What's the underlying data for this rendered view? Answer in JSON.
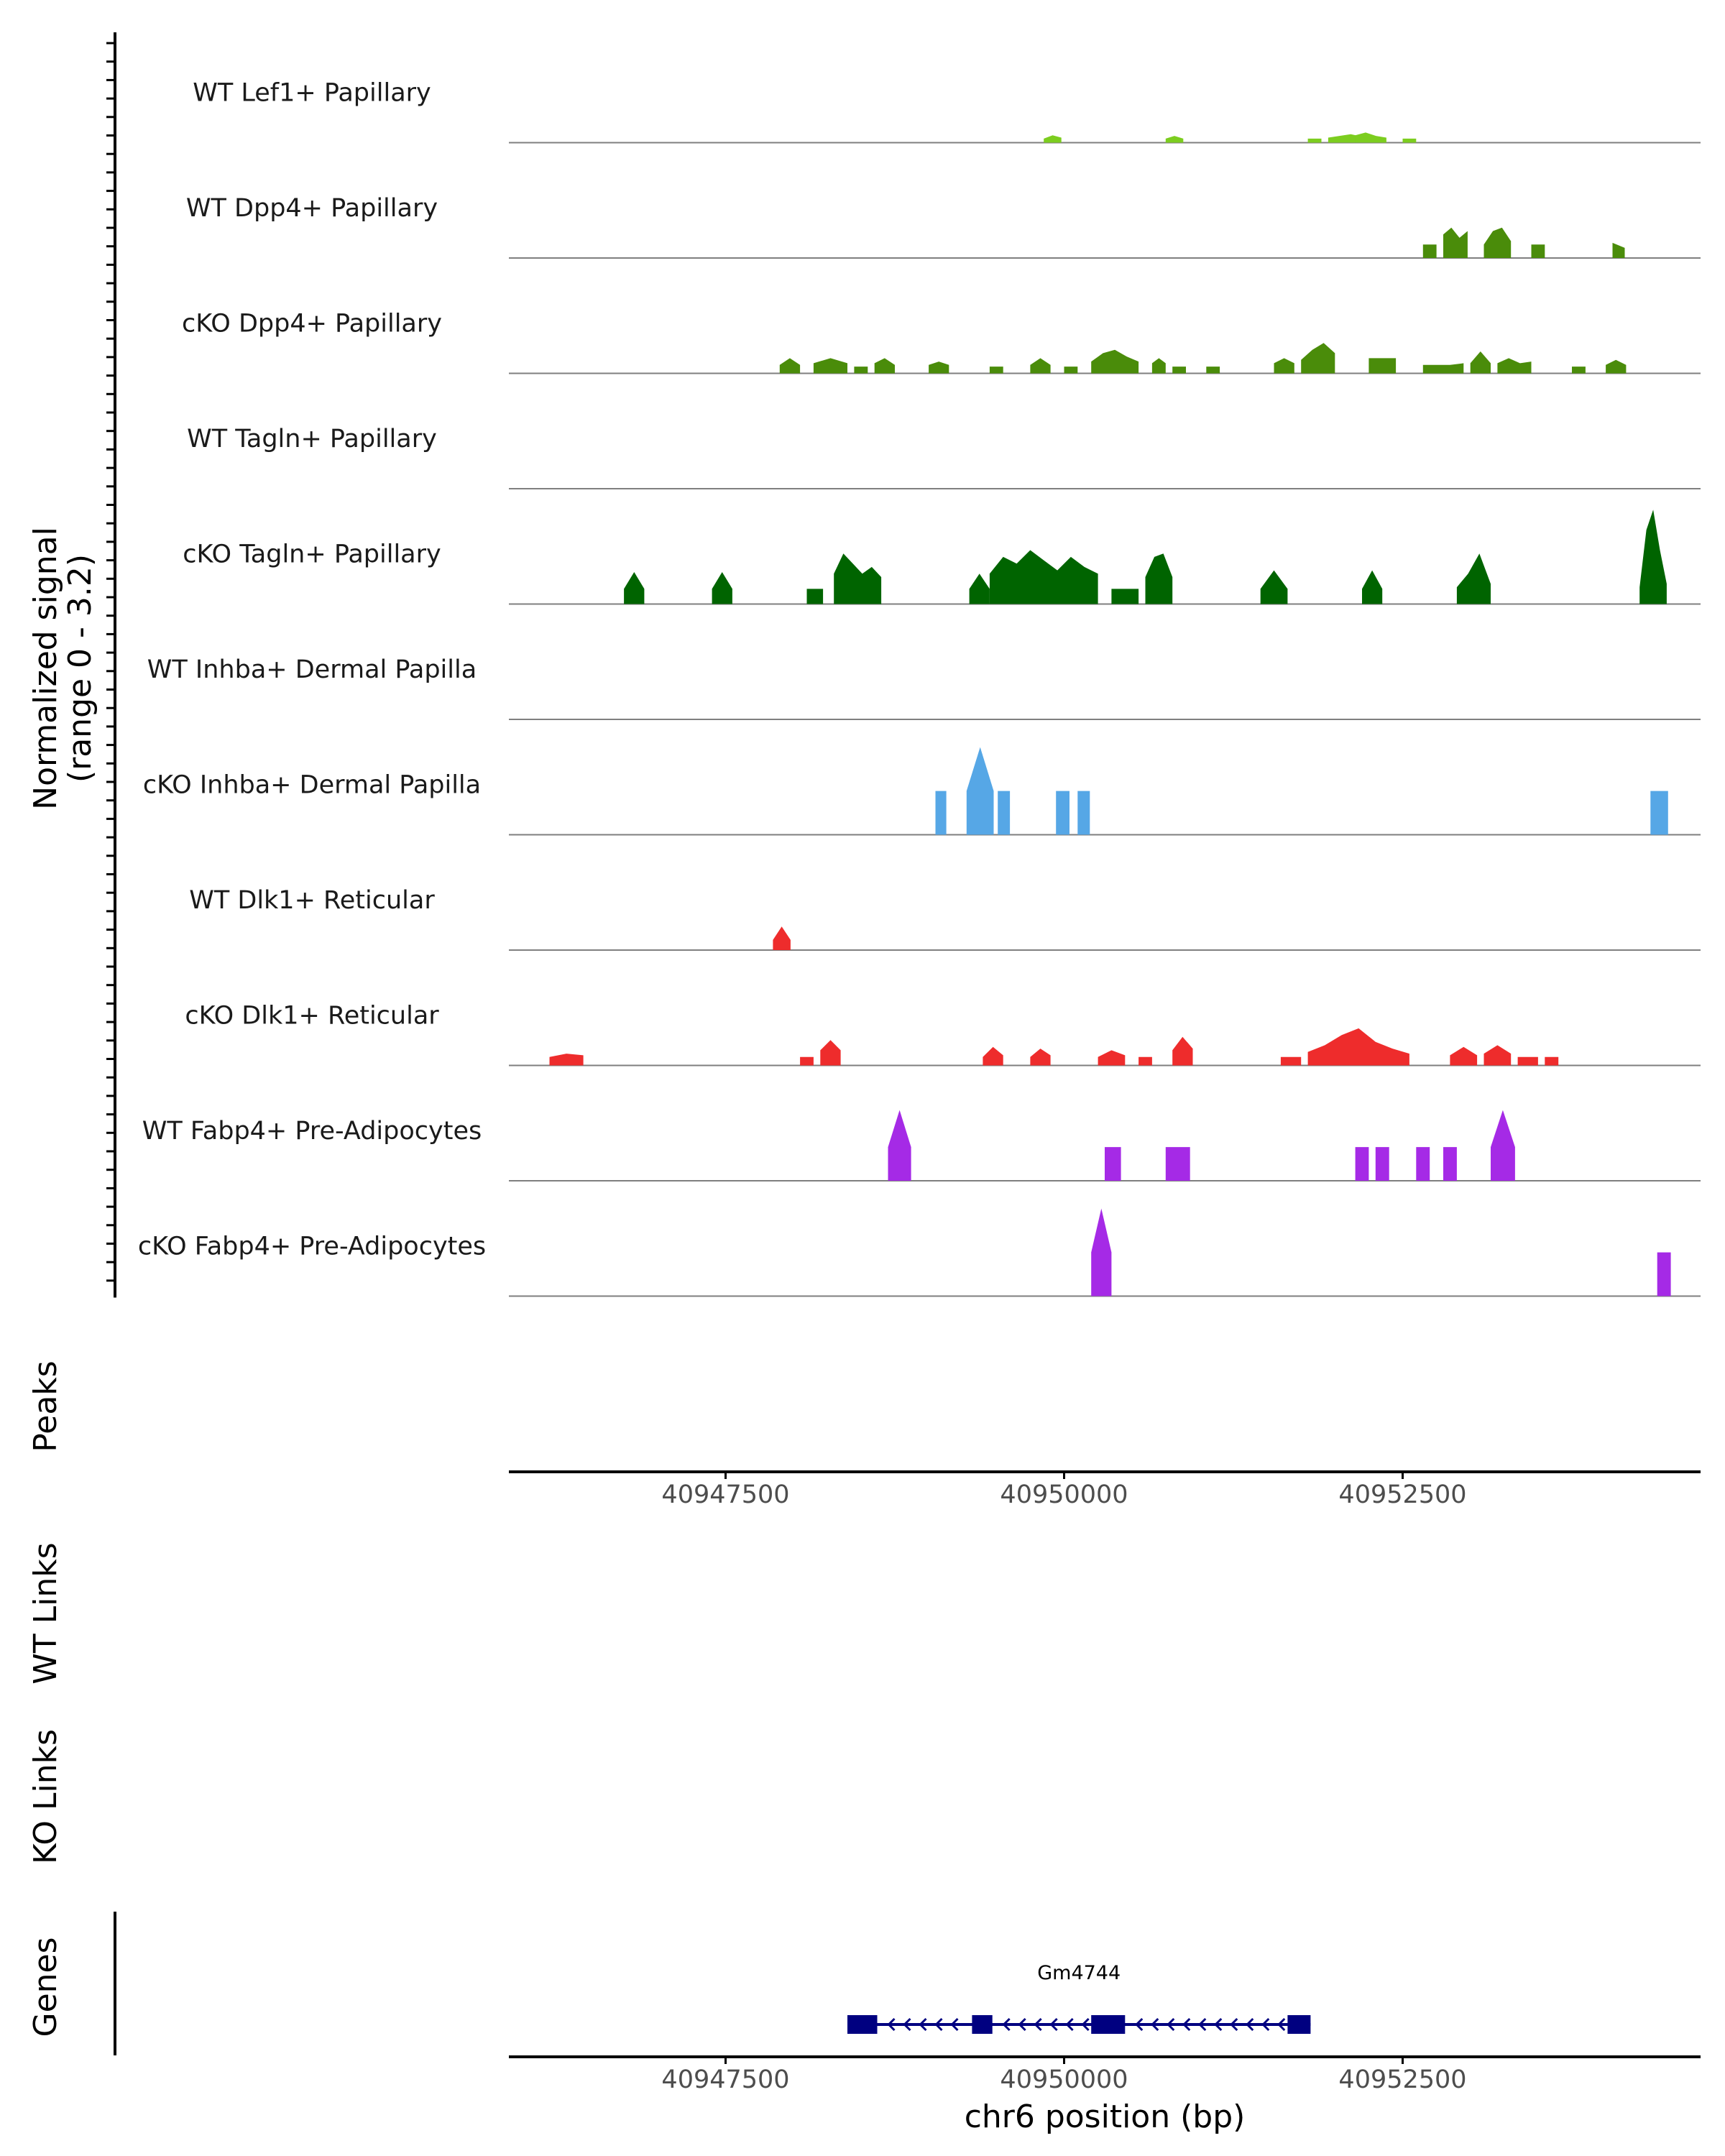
{
  "chart_data": {
    "type": "area",
    "title": "",
    "chromosome": "chr6",
    "xlabel": "chr6 position (bp)",
    "xlim": [
      40945900,
      40954700
    ],
    "x_ticks": [
      40947500,
      40950000,
      40952500
    ],
    "x_tick_labels": [
      "40947500",
      "40950000",
      "40952500"
    ],
    "ylabel_line1": "Normalized signal",
    "ylabel_line2": "(range 0 - 3.2)",
    "ylim": [
      0,
      3.2
    ],
    "panel_labels": {
      "peaks": "Peaks",
      "wt_links": "WT Links",
      "ko_links": "KO Links",
      "genes": "Genes"
    },
    "tracks": [
      {
        "name": "WT Lef1+ Papillary",
        "color": "#7CCD1F",
        "regions": [
          [
            40949850,
            40949980,
            [
              0.12,
              0.22,
              0.15
            ]
          ],
          [
            40950750,
            40950880,
            [
              0.12,
              0.2,
              0.12
            ]
          ],
          [
            40951800,
            40951900,
            [
              0.12,
              0.12
            ]
          ],
          [
            40951950,
            40952200,
            [
              0.15,
              0.2,
              0.25,
              0.18
            ]
          ],
          [
            40952150,
            40952380,
            [
              0.22,
              0.3,
              0.2,
              0.15
            ]
          ],
          [
            40952500,
            40952600,
            [
              0.12,
              0.12
            ]
          ]
        ]
      },
      {
        "name": "WT Dpp4+ Papillary",
        "color": "#4A8C0A",
        "regions": [
          [
            40952650,
            40952750,
            [
              0.4,
              0.4
            ]
          ],
          [
            40952800,
            40952980,
            [
              0.7,
              0.9,
              0.6,
              0.8
            ]
          ],
          [
            40953100,
            40953300,
            [
              0.4,
              0.8,
              0.9,
              0.5
            ]
          ],
          [
            40953450,
            40953550,
            [
              0.4,
              0.4
            ]
          ],
          [
            40954050,
            40954140,
            [
              0.45,
              0.3
            ]
          ]
        ]
      },
      {
        "name": "cKO Dpp4+ Papillary",
        "color": "#4A8C0A",
        "regions": [
          [
            40947900,
            40948050,
            [
              0.25,
              0.45,
              0.25
            ]
          ],
          [
            40948150,
            40948400,
            [
              0.3,
              0.45,
              0.3
            ]
          ],
          [
            40948450,
            40948550,
            [
              0.2,
              0.2
            ]
          ],
          [
            40948600,
            40948750,
            [
              0.3,
              0.45,
              0.25
            ]
          ],
          [
            40949000,
            40949150,
            [
              0.25,
              0.35,
              0.25
            ]
          ],
          [
            40949450,
            40949550,
            [
              0.2,
              0.2
            ]
          ],
          [
            40949750,
            40949900,
            [
              0.25,
              0.45,
              0.25
            ]
          ],
          [
            40950000,
            40950100,
            [
              0.2,
              0.2
            ]
          ],
          [
            40950200,
            40950550,
            [
              0.35,
              0.6,
              0.7,
              0.5,
              0.35
            ]
          ],
          [
            40950650,
            40950750,
            [
              0.3,
              0.45,
              0.3
            ]
          ],
          [
            40950800,
            40950900,
            [
              0.2,
              0.2
            ]
          ],
          [
            40951050,
            40951150,
            [
              0.2,
              0.2
            ]
          ],
          [
            40951550,
            40951700,
            [
              0.3,
              0.45,
              0.3
            ]
          ],
          [
            40951750,
            40952000,
            [
              0.4,
              0.7,
              0.9,
              0.6
            ]
          ],
          [
            40952250,
            40952450,
            [
              0.45,
              0.45,
              0.45
            ]
          ],
          [
            40952650,
            40952950,
            [
              0.25,
              0.25,
              0.25,
              0.3
            ]
          ],
          [
            40953000,
            40953150,
            [
              0.3,
              0.65,
              0.3
            ]
          ],
          [
            40953200,
            40953450,
            [
              0.3,
              0.45,
              0.3,
              0.35
            ]
          ],
          [
            40953750,
            40953850,
            [
              0.2,
              0.2
            ]
          ],
          [
            40954000,
            40954150,
            [
              0.25,
              0.4,
              0.25
            ]
          ]
        ]
      },
      {
        "name": "WT Tagln+ Papillary",
        "color": "#006400",
        "regions": []
      },
      {
        "name": "cKO Tagln+ Papillary",
        "color": "#006400",
        "regions": [
          [
            40946750,
            40946900,
            [
              0.45,
              0.95,
              0.45
            ]
          ],
          [
            40947400,
            40947550,
            [
              0.45,
              0.95,
              0.45
            ]
          ],
          [
            40948100,
            40948220,
            [
              0.45,
              0.45
            ]
          ],
          [
            40948300,
            40948650,
            [
              0.9,
              1.5,
              1.2,
              0.9,
              1.1,
              0.8
            ]
          ],
          [
            40949300,
            40949450,
            [
              0.45,
              0.9,
              0.45
            ]
          ],
          [
            40949450,
            40950250,
            [
              0.9,
              1.4,
              1.2,
              1.6,
              1.3,
              1.0,
              1.4,
              1.1,
              0.9
            ]
          ],
          [
            40950350,
            40950550,
            [
              0.45,
              0.45
            ]
          ],
          [
            40950600,
            40950800,
            [
              0.8,
              1.4,
              1.5,
              0.8
            ]
          ],
          [
            40951450,
            40951650,
            [
              0.45,
              1.0,
              0.45
            ]
          ],
          [
            40952200,
            40952350,
            [
              0.45,
              1.0,
              0.45
            ]
          ],
          [
            40952900,
            40953150,
            [
              0.5,
              0.9,
              1.5,
              0.6
            ]
          ],
          [
            40954250,
            40954450,
            [
              0.5,
              2.2,
              2.8,
              1.6,
              0.6
            ]
          ]
        ]
      },
      {
        "name": "WT Inhba+ Dermal Papilla",
        "color": "#56A7E6",
        "regions": []
      },
      {
        "name": "cKO Inhba+ Dermal Papilla",
        "color": "#56A7E6",
        "regions": [
          [
            40949050,
            40949130,
            [
              1.3,
              1.3
            ]
          ],
          [
            40949280,
            40949480,
            [
              1.3,
              2.6,
              1.3
            ]
          ],
          [
            40949510,
            40949600,
            [
              1.3,
              1.3
            ]
          ],
          [
            40949940,
            40950040,
            [
              1.3,
              1.3
            ]
          ],
          [
            40950100,
            40950190,
            [
              1.3,
              1.3
            ]
          ],
          [
            40954330,
            40954460,
            [
              1.3,
              1.3
            ]
          ]
        ]
      },
      {
        "name": "WT Dlk1+ Reticular",
        "color": "#EE2C2C",
        "regions": [
          [
            40947850,
            40947980,
            [
              0.3,
              0.7,
              0.3
            ]
          ]
        ]
      },
      {
        "name": "cKO Dlk1+ Reticular",
        "color": "#EE2C2C",
        "regions": [
          [
            40946200,
            40946450,
            [
              0.25,
              0.35,
              0.3
            ]
          ],
          [
            40948050,
            40948150,
            [
              0.25,
              0.25
            ]
          ],
          [
            40948200,
            40948350,
            [
              0.45,
              0.75,
              0.45
            ]
          ],
          [
            40949400,
            40949550,
            [
              0.25,
              0.55,
              0.3
            ]
          ],
          [
            40949750,
            40949900,
            [
              0.25,
              0.5,
              0.3
            ]
          ],
          [
            40950250,
            40950450,
            [
              0.25,
              0.45,
              0.3
            ]
          ],
          [
            40950550,
            40950650,
            [
              0.25,
              0.25
            ]
          ],
          [
            40950800,
            40950950,
            [
              0.45,
              0.85,
              0.5
            ]
          ],
          [
            40951600,
            40951750,
            [
              0.25,
              0.25
            ]
          ],
          [
            40951800,
            40952550,
            [
              0.4,
              0.6,
              0.9,
              1.1,
              0.7,
              0.5,
              0.35
            ]
          ],
          [
            40952850,
            40953050,
            [
              0.3,
              0.55,
              0.3
            ]
          ],
          [
            40953100,
            40953300,
            [
              0.35,
              0.6,
              0.35
            ]
          ],
          [
            40953350,
            40953500,
            [
              0.25,
              0.25
            ]
          ],
          [
            40953550,
            40953650,
            [
              0.25,
              0.25
            ]
          ]
        ]
      },
      {
        "name": "WT Fabp4+ Pre-Adipocytes",
        "color": "#A52AE6",
        "regions": [
          [
            40948700,
            40948870,
            [
              1.0,
              2.1,
              1.0
            ]
          ],
          [
            40950300,
            40950420,
            [
              1.0,
              1.0
            ]
          ],
          [
            40950750,
            40950930,
            [
              1.0,
              1.0
            ]
          ],
          [
            40952150,
            40952250,
            [
              1.0,
              1.0
            ]
          ],
          [
            40952300,
            40952400,
            [
              1.0,
              1.0
            ]
          ],
          [
            40952600,
            40952700,
            [
              1.0,
              1.0
            ]
          ],
          [
            40952800,
            40952900,
            [
              1.0,
              1.0
            ]
          ],
          [
            40953150,
            40953330,
            [
              1.0,
              2.1,
              1.0
            ]
          ]
        ]
      },
      {
        "name": "cKO Fabp4+ Pre-Adipocytes",
        "color": "#A52AE6",
        "regions": [
          [
            40950200,
            40950350,
            [
              1.3,
              2.6,
              1.3
            ]
          ],
          [
            40954380,
            40954480,
            [
              1.3,
              1.3
            ]
          ]
        ]
      }
    ],
    "gene": {
      "name": "Gm4744",
      "strand": "-",
      "start": 40948400,
      "end": 40951820,
      "exons": [
        [
          40948400,
          40948620
        ],
        [
          40949320,
          40949470
        ],
        [
          40950200,
          40950450
        ],
        [
          40951650,
          40951820
        ]
      ]
    }
  }
}
